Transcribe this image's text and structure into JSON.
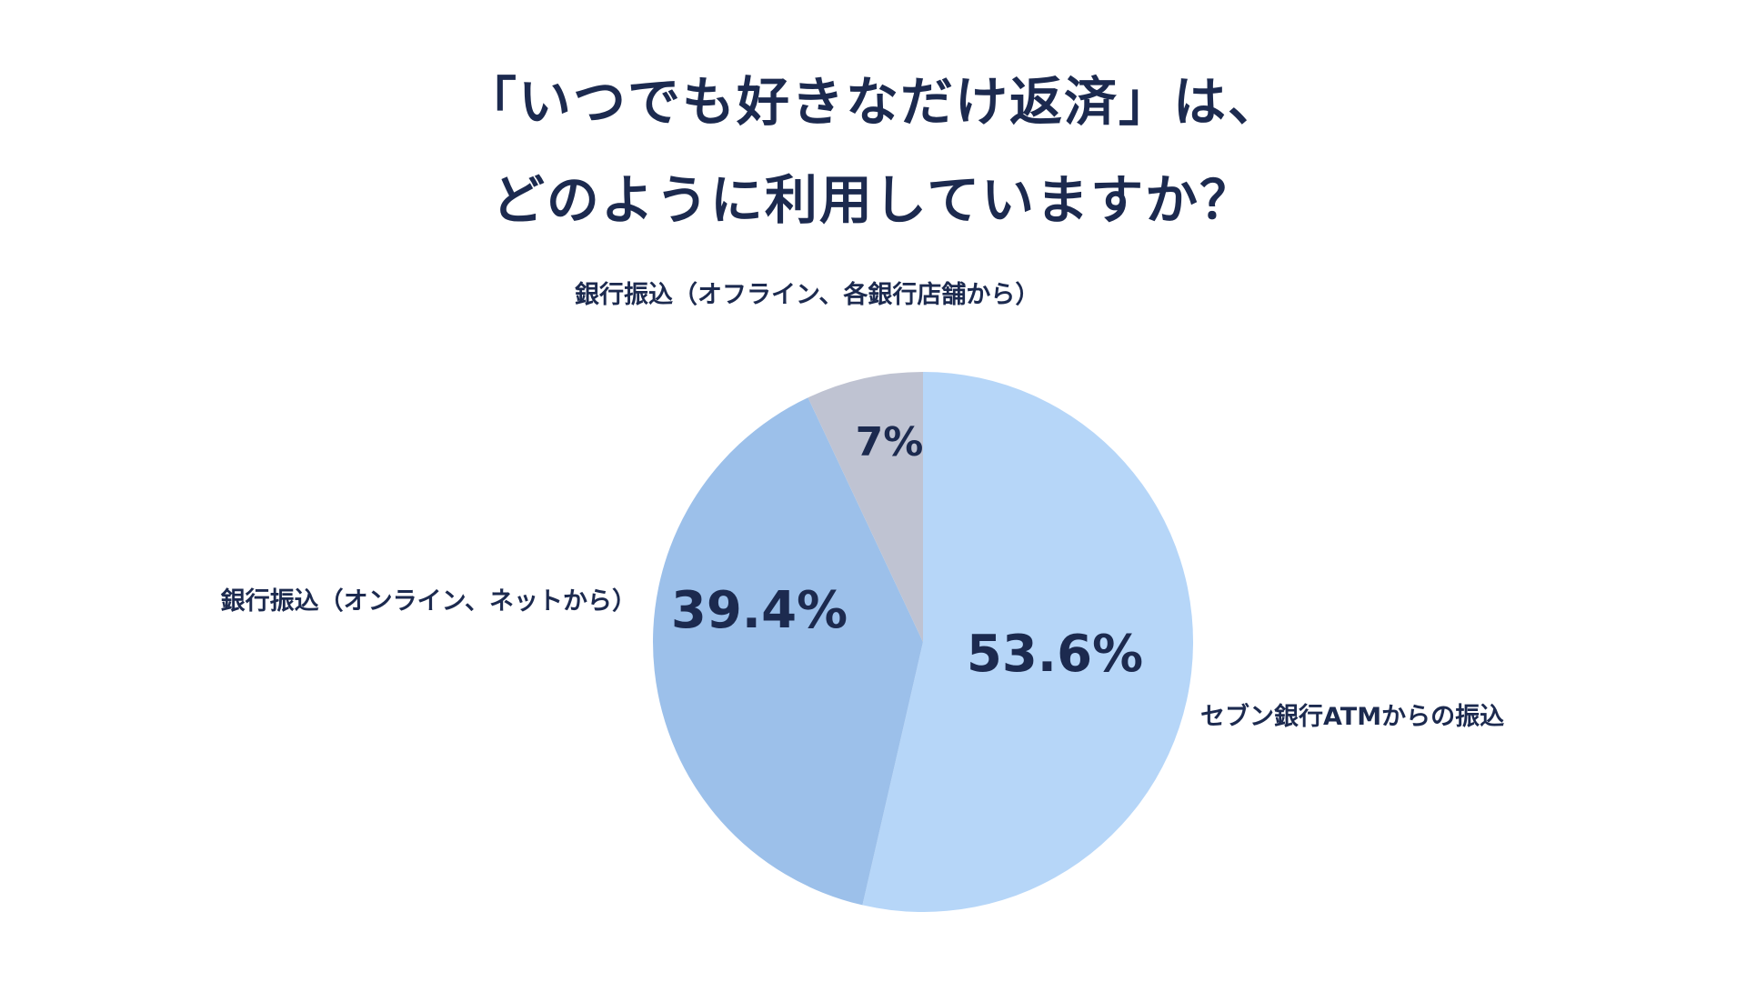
{
  "title_lines": [
    "「いつでも好きなだけ返済」は、",
    "どのように利用していますか？"
  ],
  "chart_data": {
    "type": "pie",
    "title": "「いつでも好きなだけ返済」は、どのように利用していますか？",
    "slices": [
      {
        "label": "セブン銀行ATMからの振込",
        "value": 53.6,
        "value_label": "53.6%",
        "color": "#b6d6f8"
      },
      {
        "label": "銀行振込（オンライン、ネットから）",
        "value": 39.4,
        "value_label": "39.4%",
        "color": "#9cc0ea"
      },
      {
        "label": "銀行振込（オフライン、各銀行店舗から）",
        "value": 7,
        "value_label": "7%",
        "color": "#bfc3d2"
      }
    ],
    "start_angle": "12 o'clock",
    "direction": "clockwise",
    "legend": "none (outside labels)"
  },
  "colors": {
    "text": "#1c2a4f",
    "background": "#ffffff"
  }
}
